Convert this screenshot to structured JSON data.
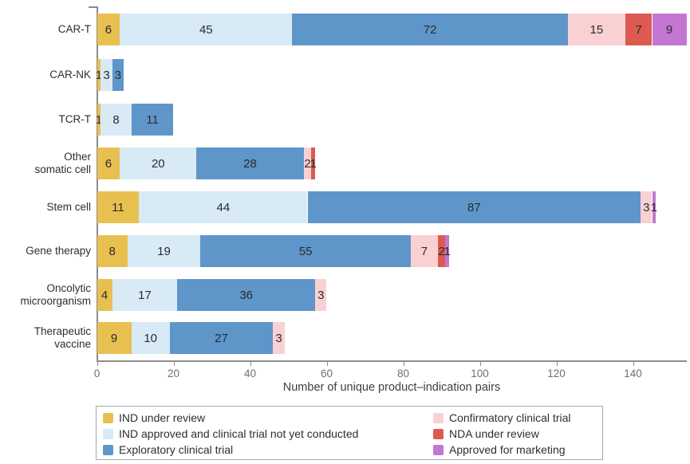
{
  "chart_data": {
    "type": "bar",
    "orientation": "horizontal",
    "stacked": true,
    "title": "",
    "xlabel": "Number of unique product–indication pairs",
    "ylabel": "",
    "xlim": [
      0,
      155
    ],
    "xticks": [
      0,
      20,
      40,
      60,
      80,
      100,
      120,
      140
    ],
    "grid": false,
    "legend_position": "bottom",
    "categories": [
      "CAR-T",
      "CAR-NK",
      "TCR-T",
      "Other\nsomatic cell",
      "Stem cell",
      "Gene therapy",
      "Oncolytic\nmicroorganism",
      "Therapeutic\nvaccine"
    ],
    "series": [
      {
        "name": "IND under review",
        "color": "#e8c04f",
        "values": [
          6,
          1,
          1,
          6,
          11,
          8,
          4,
          9
        ]
      },
      {
        "name": "IND approved and clinical trial not yet conducted",
        "color": "#d8eaf6",
        "values": [
          45,
          3,
          8,
          20,
          44,
          19,
          17,
          10
        ]
      },
      {
        "name": "Exploratory clinical trial",
        "color": "#5f96c9",
        "values": [
          72,
          3,
          11,
          28,
          87,
          55,
          36,
          27
        ]
      },
      {
        "name": "Confirmatory clinical trial",
        "color": "#fad1d3",
        "values": [
          15,
          0,
          0,
          2,
          3,
          7,
          3,
          3
        ]
      },
      {
        "name": "NDA under review",
        "color": "#dc5a52",
        "values": [
          7,
          0,
          0,
          1,
          0,
          2,
          0,
          0
        ]
      },
      {
        "name": "Approved for marketing",
        "color": "#c377d3",
        "values": [
          9,
          0,
          0,
          0,
          1,
          1,
          0,
          0
        ]
      }
    ]
  },
  "legend": {
    "columns": [
      [
        0,
        1,
        2
      ],
      [
        3,
        4,
        5
      ]
    ]
  },
  "style": {
    "axis_line_color": "#8c8c8c",
    "tick_label_color": "#6f6f6f",
    "axis_title_color": "#3d3d3d",
    "value_label_color": "#2b2b2b"
  }
}
